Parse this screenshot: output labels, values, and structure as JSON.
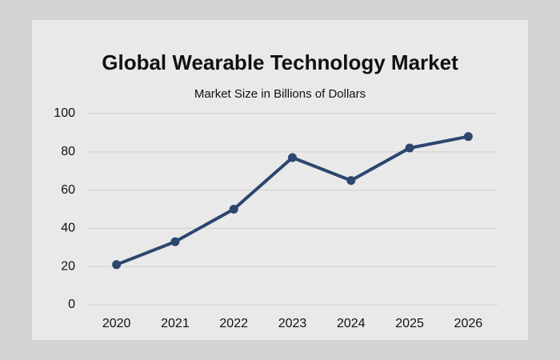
{
  "chart_data": {
    "type": "line",
    "title": "Global Wearable Technology Market",
    "subtitle": "Market Size in Billions of Dollars",
    "categories": [
      "2020",
      "2021",
      "2022",
      "2023",
      "2024",
      "2025",
      "2026"
    ],
    "values": [
      21,
      33,
      50,
      77,
      65,
      82,
      88
    ],
    "color": "#2c4670",
    "ylim": [
      0,
      100
    ],
    "yticks": [
      0,
      20,
      40,
      60,
      80,
      100
    ],
    "grid": true
  }
}
